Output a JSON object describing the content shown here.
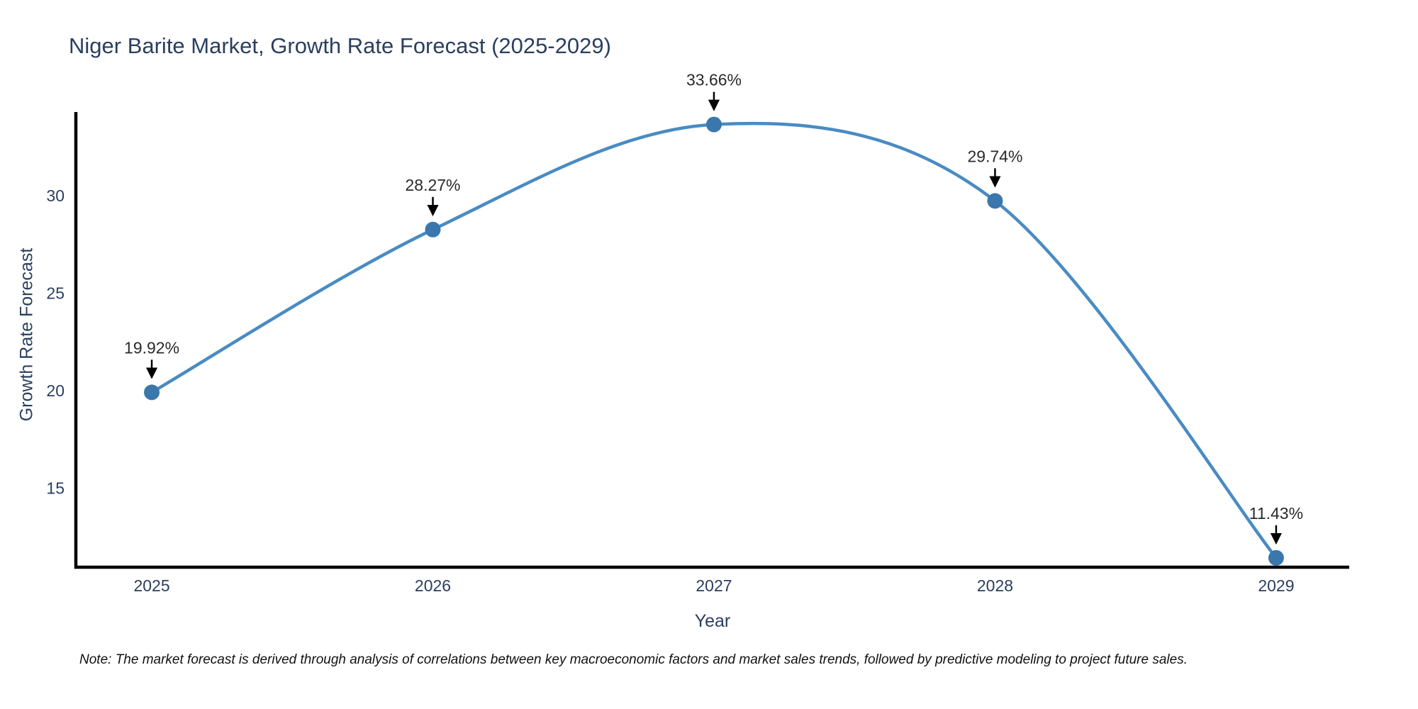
{
  "chart_data": {
    "type": "line",
    "title": "Niger Barite Market, Growth Rate Forecast (2025-2029)",
    "xlabel": "Year",
    "ylabel": "Growth Rate Forecast",
    "x": [
      2025,
      2026,
      2027,
      2028,
      2029
    ],
    "x_tick_labels": [
      "2025",
      "2026",
      "2027",
      "2028",
      "2029"
    ],
    "series": [
      {
        "name": "Growth Rate Forecast",
        "values": [
          19.92,
          28.27,
          33.66,
          29.74,
          11.43
        ],
        "point_labels": [
          "19.92%",
          "28.27%",
          "33.66%",
          "29.74%",
          "11.43%"
        ]
      }
    ],
    "yticks": [
      15,
      20,
      25,
      30
    ],
    "ylim": [
      10.95,
      34.3
    ],
    "xlim": [
      2024.73,
      2029.26
    ],
    "grid": false,
    "legend_position": "none",
    "line_shape": "spline",
    "annotation_style": "value label with down arrow to marker",
    "colors": {
      "line": "#4a8bc2",
      "marker": "#3a77ad",
      "axis": "#000000",
      "tick_label": "#2a3f5f",
      "title": "#2a3f5f",
      "annotation_text": "#2a2a2a",
      "arrow": "#000000",
      "background": "#ffffff"
    }
  },
  "note": {
    "text": "Note: The market forecast is derived through analysis of correlations between key macroeconomic factors and market sales trends, followed by predictive modeling to project future sales."
  }
}
